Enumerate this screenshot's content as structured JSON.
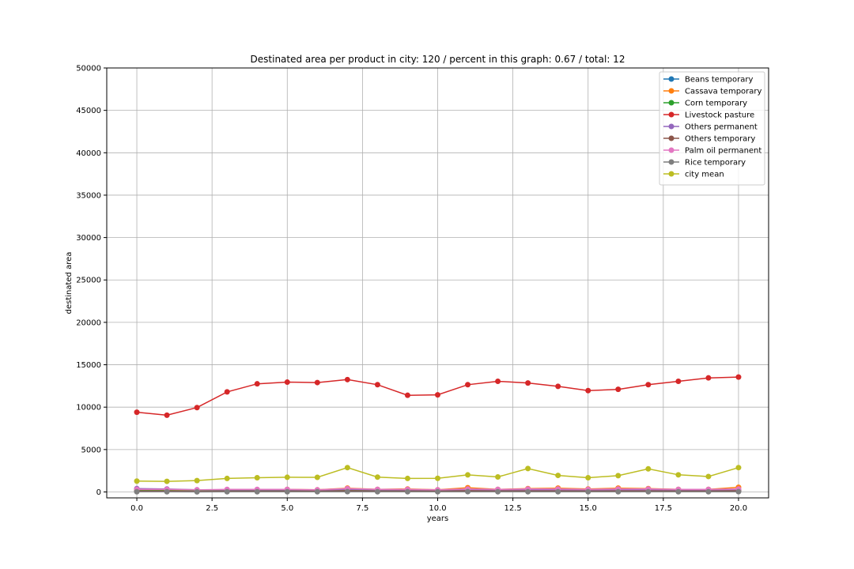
{
  "chart_data": {
    "type": "line",
    "title": "Destinated area per product in city: 120 / percent in this graph: 0.67 / total: 12",
    "xlabel": "years",
    "ylabel": "destinated area",
    "xlim": [
      -1,
      21
    ],
    "ylim": [
      -700,
      50000
    ],
    "xticks": [
      0,
      2.5,
      5,
      7.5,
      10,
      12.5,
      15,
      17.5,
      20
    ],
    "xtick_labels": [
      "0.0",
      "2.5",
      "5.0",
      "7.5",
      "10.0",
      "12.5",
      "15.0",
      "17.5",
      "20.0"
    ],
    "yticks": [
      0,
      5000,
      10000,
      15000,
      20000,
      25000,
      30000,
      35000,
      40000,
      45000,
      50000
    ],
    "ytick_labels": [
      "0",
      "5000",
      "10000",
      "15000",
      "20000",
      "25000",
      "30000",
      "35000",
      "40000",
      "45000",
      "50000"
    ],
    "grid": true,
    "legend_position": "top-right",
    "x": [
      0,
      1,
      2,
      3,
      4,
      5,
      6,
      7,
      8,
      9,
      10,
      11,
      12,
      13,
      14,
      15,
      16,
      17,
      18,
      19,
      20
    ],
    "series": [
      {
        "name": "Beans temporary",
        "color": "#1f77b4",
        "values": [
          80,
          70,
          60,
          70,
          80,
          80,
          70,
          90,
          80,
          80,
          70,
          80,
          80,
          80,
          70,
          60,
          70,
          80,
          70,
          70,
          80
        ]
      },
      {
        "name": "Cassava temporary",
        "color": "#ff7f0e",
        "values": [
          250,
          250,
          200,
          250,
          250,
          300,
          250,
          450,
          300,
          350,
          250,
          500,
          300,
          400,
          450,
          350,
          450,
          400,
          300,
          300,
          550
        ]
      },
      {
        "name": "Corn temporary",
        "color": "#2ca02c",
        "values": [
          150,
          150,
          120,
          150,
          150,
          170,
          150,
          200,
          160,
          170,
          150,
          200,
          170,
          180,
          180,
          160,
          180,
          180,
          160,
          160,
          200
        ]
      },
      {
        "name": "Livestock pasture",
        "color": "#d62728",
        "values": [
          9400,
          9050,
          9950,
          11800,
          12750,
          12950,
          12900,
          13250,
          12650,
          11400,
          11450,
          12650,
          13050,
          12850,
          12450,
          11950,
          12100,
          12650,
          13050,
          13450,
          13550
        ]
      },
      {
        "name": "Others permanent",
        "color": "#9467bd",
        "values": [
          400,
          350,
          250,
          250,
          250,
          250,
          200,
          300,
          250,
          250,
          200,
          250,
          250,
          250,
          250,
          250,
          250,
          250,
          250,
          250,
          200
        ]
      },
      {
        "name": "Others temporary",
        "color": "#8c564b",
        "values": [
          100,
          100,
          80,
          100,
          100,
          100,
          100,
          150,
          100,
          120,
          100,
          150,
          120,
          130,
          130,
          110,
          130,
          130,
          110,
          110,
          150
        ]
      },
      {
        "name": "Palm oil permanent",
        "color": "#e377c2",
        "values": [
          300,
          300,
          250,
          300,
          300,
          300,
          250,
          400,
          300,
          300,
          250,
          350,
          300,
          350,
          350,
          300,
          350,
          350,
          300,
          300,
          350
        ]
      },
      {
        "name": "Rice temporary",
        "color": "#7f7f7f",
        "values": [
          20,
          20,
          10,
          20,
          20,
          20,
          20,
          30,
          20,
          20,
          20,
          30,
          20,
          20,
          20,
          20,
          20,
          20,
          20,
          20,
          30
        ]
      },
      {
        "name": "city mean",
        "color": "#bcbd22",
        "values": [
          1280,
          1250,
          1340,
          1590,
          1680,
          1730,
          1720,
          2870,
          1750,
          1590,
          1610,
          2010,
          1770,
          2760,
          1950,
          1680,
          1920,
          2720,
          2020,
          1820,
          2870
        ]
      }
    ]
  }
}
